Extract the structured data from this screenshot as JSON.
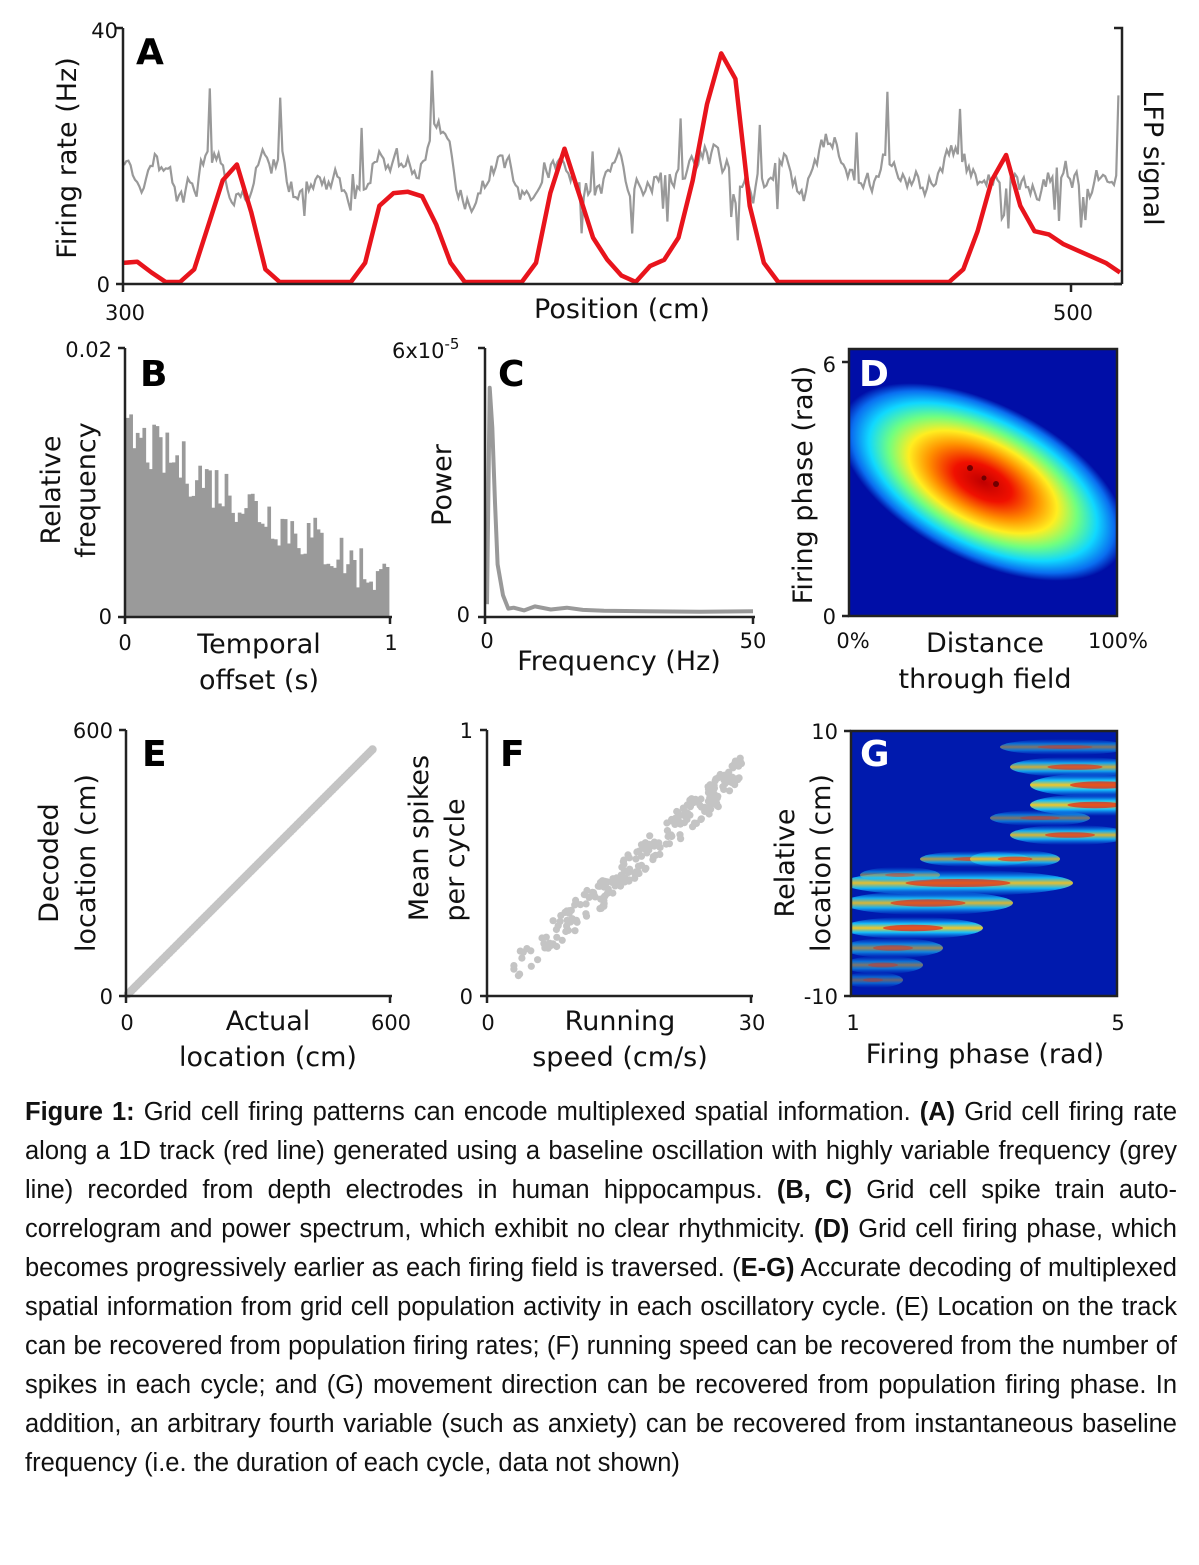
{
  "figure": {
    "panels": {
      "A": {
        "label": "A",
        "ylabel": "Firing rate (Hz)",
        "ylabel_right": "LFP signal",
        "xlabel": "Position (cm)",
        "yticks": [
          "0",
          "40"
        ],
        "xticks": [
          "300",
          "500"
        ]
      },
      "B": {
        "label": "B",
        "ylabel_line1": "Relative",
        "ylabel_line2": "frequency",
        "xlabel_line1": "Temporal",
        "xlabel_line2": "offset (s)",
        "yticks": [
          "0",
          "0.02"
        ],
        "xticks": [
          "0",
          "1"
        ]
      },
      "C": {
        "label": "C",
        "ylabel": "Power",
        "xlabel": "Frequency (Hz)",
        "ytick_top": "6x10",
        "ytick_top_exp": "-5",
        "yticks": [
          "0"
        ],
        "xticks": [
          "0",
          "50"
        ]
      },
      "D": {
        "label": "D",
        "ylabel": "Firing phase (rad)",
        "xlabel_line1": "Distance",
        "xlabel_line2": "through field",
        "yticks": [
          "0",
          "6"
        ],
        "xticks": [
          "0%",
          "100%"
        ]
      },
      "E": {
        "label": "E",
        "ylabel_line1": "Decoded",
        "ylabel_line2": "location (cm)",
        "xlabel_line1": "Actual",
        "xlabel_line2": "location (cm)",
        "yticks": [
          "0",
          "600"
        ],
        "xticks": [
          "0",
          "600"
        ]
      },
      "F": {
        "label": "F",
        "ylabel_line1": "Mean spikes",
        "ylabel_line2": "per cycle",
        "xlabel_line1": "Running",
        "xlabel_line2": "speed (cm/s)",
        "yticks": [
          "0",
          "1"
        ],
        "xticks": [
          "0",
          "30"
        ]
      },
      "G": {
        "label": "G",
        "ylabel_line1": "Relative",
        "ylabel_line2": "location (cm)",
        "xlabel": "Firing phase (rad)",
        "yticks": [
          "-10",
          "10"
        ],
        "xticks": [
          "1",
          "5"
        ]
      }
    },
    "colors": {
      "red": "#e8141c",
      "grey": "#999999",
      "light_grey": "#c4c4c4",
      "bar_grey": "#9a9a9a"
    }
  },
  "chart_data": [
    {
      "panel": "A",
      "type": "line",
      "xlim": [
        300,
        510
      ],
      "ylim": [
        0,
        40
      ],
      "series": [
        {
          "axis": "left",
          "x": [
            300,
            303,
            306,
            309,
            312,
            315,
            318,
            321,
            324,
            327,
            330,
            333,
            336,
            339,
            342,
            345,
            348,
            351,
            354,
            357,
            360,
            363,
            366,
            369,
            372,
            375,
            378,
            381,
            384,
            387,
            390,
            393,
            396,
            399,
            402,
            405,
            408,
            411,
            414,
            417,
            420,
            423,
            426,
            429,
            432,
            435,
            438,
            441,
            444,
            447,
            450,
            453,
            456,
            459,
            462,
            465,
            468,
            471,
            474,
            477,
            480,
            483,
            486,
            489,
            492,
            495,
            498,
            501,
            504,
            507,
            510
          ],
          "y": [
            3,
            3.2,
            1.5,
            0,
            0,
            2,
            9,
            16,
            18.5,
            11,
            2,
            0,
            0,
            0,
            0,
            0,
            0,
            3,
            12,
            14,
            14.2,
            13.5,
            9,
            3,
            0,
            0,
            0,
            0,
            0,
            3,
            14,
            21,
            14,
            7,
            3.5,
            1,
            0,
            2.5,
            3.5,
            7,
            16,
            28,
            36,
            32,
            12,
            3,
            0,
            0,
            0,
            0,
            0,
            0,
            0,
            0,
            0,
            0,
            0,
            0,
            0,
            2,
            8,
            16,
            20,
            12,
            8,
            7.5,
            6,
            5,
            4,
            3,
            1.5
          ]
        },
        {
          "axis": "right",
          "signal": "LFP",
          "range": "ca. 0-28"
        }
      ]
    },
    {
      "panel": "B",
      "type": "bar",
      "xlim": [
        0,
        1
      ],
      "ylim": [
        0,
        0.02
      ],
      "bins": 80,
      "values_approx": "decaying from ~0.015 near 0 s to ~0.002 near 1 s"
    },
    {
      "panel": "C",
      "type": "line",
      "xlim": [
        0,
        50
      ],
      "ylim": [
        0,
        6e-05
      ],
      "x": [
        0,
        0.5,
        1,
        1.5,
        2,
        3,
        4,
        5,
        7,
        9,
        12,
        15,
        18,
        22,
        30,
        40,
        50
      ],
      "y": [
        2e-06,
        5.1e-05,
        4.2e-05,
        2.5e-05,
        1.1e-05,
        4e-06,
        1e-06,
        1.2e-06,
        6e-07,
        1.5e-06,
        8e-07,
        1.2e-06,
        7e-07,
        5e-07,
        4e-07,
        3e-07,
        4e-07
      ]
    },
    {
      "panel": "D",
      "type": "heatmap",
      "xlim": [
        "0%",
        "100%"
      ],
      "ylim": [
        0,
        6
      ],
      "peak": {
        "x_fraction": 0.5,
        "y": 3.4
      },
      "trend": "phase decreases as distance increases"
    },
    {
      "panel": "E",
      "type": "scatter",
      "xlim": [
        0,
        600
      ],
      "ylim": [
        0,
        600
      ],
      "relation": "decoded = actual",
      "x_range": [
        0,
        560
      ]
    },
    {
      "panel": "F",
      "type": "scatter",
      "xlim": [
        0,
        30
      ],
      "ylim": [
        0,
        1
      ],
      "relation": "approximately linear, 0.1 at 3 cm/s to 0.85 at 29 cm/s"
    },
    {
      "panel": "G",
      "type": "heatmap",
      "xlim": [
        1,
        5
      ],
      "ylim": [
        -10,
        10
      ],
      "trend": "relative location increases with firing phase"
    }
  ],
  "caption": {
    "fig_label": "Figure 1:",
    "p1": " Grid cell firing patterns can encode multiplexed spatial information. ",
    "tagA": "(A)",
    "p2": " Grid cell firing rate along a 1D track (red line) generated using a baseline oscillation with highly variable frequency (grey line) recorded from depth electrodes in human hippocampus. ",
    "tagBC": "(B, C)",
    "p3": " Grid cell spike train auto-correlogram and power spectrum, which exhibit no clear rhythmicity. ",
    "tagD": "(D)",
    "p4": " Grid cell firing phase, which becomes progressively earlier as each firing field is traversed. (",
    "tagEG": "E-G)",
    "p5": " Accurate decoding of multiplexed spatial information from grid cell population activity in each oscillatory cycle. (E) Location on the track can be recovered from population firing rates; (F) running speed can be recovered from the number of spikes in each cycle; and (G) movement direction can be recovered from population firing phase. In addition, an arbitrary fourth variable (such as anxiety) can be recovered from instantaneous baseline frequency (i.e. the duration of each cycle, data not shown)"
  }
}
